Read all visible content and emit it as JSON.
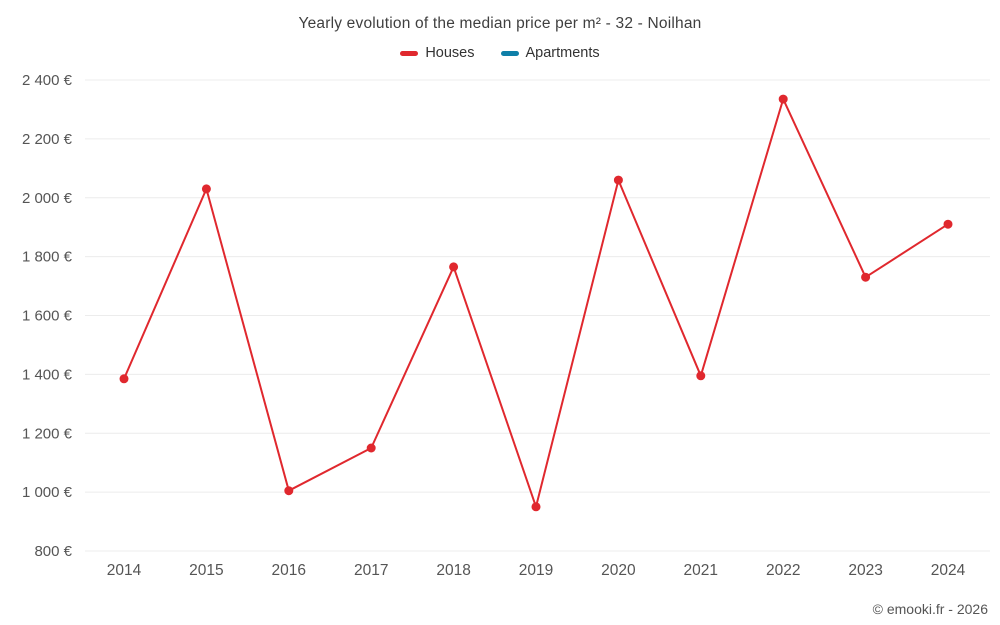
{
  "chart_data": {
    "type": "line",
    "title": "Yearly evolution of the median price per m² - 32 - Noilhan",
    "categories": [
      "2014",
      "2015",
      "2016",
      "2017",
      "2018",
      "2019",
      "2020",
      "2021",
      "2022",
      "2023",
      "2024"
    ],
    "series": [
      {
        "name": "Houses",
        "color": "#e0282e",
        "values": [
          1385,
          2030,
          1005,
          1150,
          1765,
          950,
          2060,
          1395,
          2335,
          1730,
          1910
        ]
      },
      {
        "name": "Apartments",
        "color": "#0f7fa8",
        "values": []
      }
    ],
    "ylabel": "",
    "xlabel": "",
    "ylim": [
      800,
      2400
    ],
    "ytick_step": 200,
    "ytick_suffix": " €",
    "grid": true,
    "legend_position": "top",
    "grid_color": "#ececec",
    "tick_color": "#555555"
  },
  "footer": {
    "credit": "© emooki.fr - 2026"
  }
}
